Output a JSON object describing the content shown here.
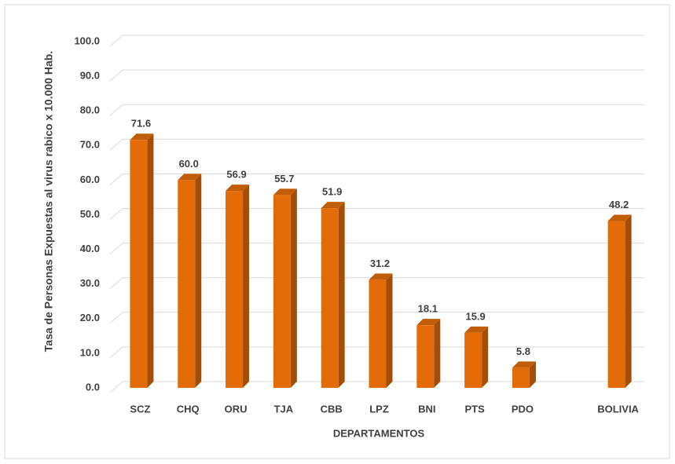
{
  "chart_data": {
    "type": "bar3d",
    "x_label": "DEPARTAMENTOS",
    "y_label": "Tasa de Personas Expuestas al virus rabico x 10.000 Hab.",
    "categories": [
      "SCZ",
      "CHQ",
      "ORU",
      "TJA",
      "CBB",
      "LPZ",
      "BNI",
      "PTS",
      "PDO",
      null,
      "BOLIVIA"
    ],
    "values": [
      71.6,
      60.0,
      56.9,
      55.7,
      51.9,
      31.2,
      18.1,
      15.9,
      5.8,
      null,
      48.2
    ],
    "value_labels": [
      "71.6",
      "60.0",
      "56.9",
      "55.7",
      "51.9",
      "31.2",
      "18.1",
      "15.9",
      "5.8",
      null,
      "48.2"
    ],
    "color": "#e36c09",
    "ylim": [
      0,
      100
    ],
    "yticks": [
      {
        "value": 0,
        "label": "0.0"
      },
      {
        "value": 10,
        "label": "10.0"
      },
      {
        "value": 20,
        "label": "20.0"
      },
      {
        "value": 30,
        "label": "30.0"
      },
      {
        "value": 40,
        "label": "40.0"
      },
      {
        "value": 50,
        "label": "50.0"
      },
      {
        "value": 60,
        "label": "60.0"
      },
      {
        "value": 70,
        "label": "70.0"
      },
      {
        "value": 80,
        "label": "80.0"
      },
      {
        "value": 90,
        "label": "90.0"
      },
      {
        "value": 100,
        "label": "100.0"
      }
    ],
    "grid": true
  }
}
